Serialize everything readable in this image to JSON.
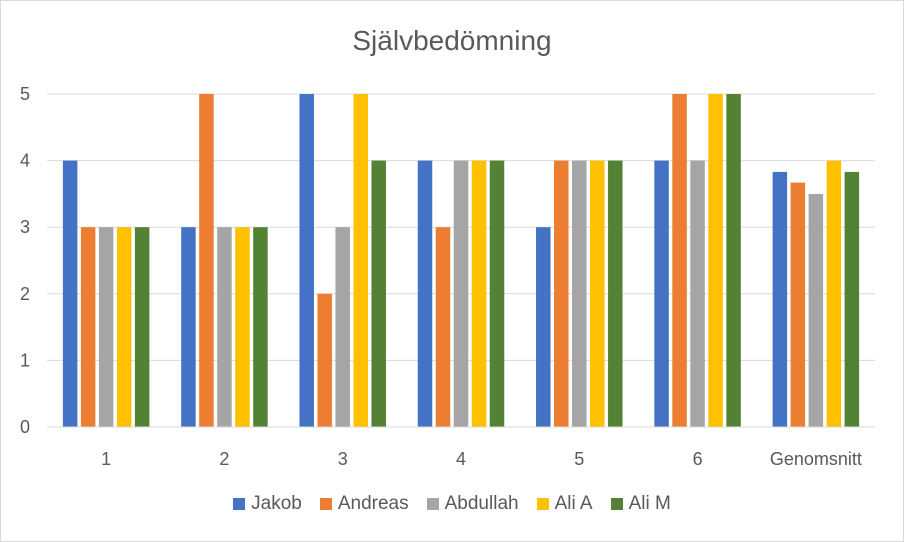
{
  "chart_data": {
    "type": "bar",
    "title": "Självbedömning",
    "xlabel": "",
    "ylabel": "",
    "categories": [
      "1",
      "2",
      "3",
      "4",
      "5",
      "6",
      "Genomsnitt"
    ],
    "ylim": [
      0,
      5
    ],
    "yticks": [
      "0",
      "1",
      "2",
      "3",
      "4",
      "5"
    ],
    "grid": true,
    "legend_position": "bottom",
    "series": [
      {
        "name": "Jakob",
        "color": "#4472c4",
        "values": [
          4,
          3,
          5,
          4,
          3,
          4,
          3.83
        ]
      },
      {
        "name": "Andreas",
        "color": "#ed7d31",
        "values": [
          3,
          5,
          2,
          3,
          4,
          5,
          3.67
        ]
      },
      {
        "name": "Abdullah",
        "color": "#a5a5a5",
        "values": [
          3,
          3,
          3,
          4,
          4,
          4,
          3.5
        ]
      },
      {
        "name": "Ali A",
        "color": "#ffc000",
        "values": [
          3,
          3,
          5,
          4,
          4,
          5,
          4
        ]
      },
      {
        "name": "Ali M",
        "color": "#548235",
        "values": [
          3,
          3,
          4,
          4,
          4,
          5,
          3.83
        ]
      }
    ]
  }
}
